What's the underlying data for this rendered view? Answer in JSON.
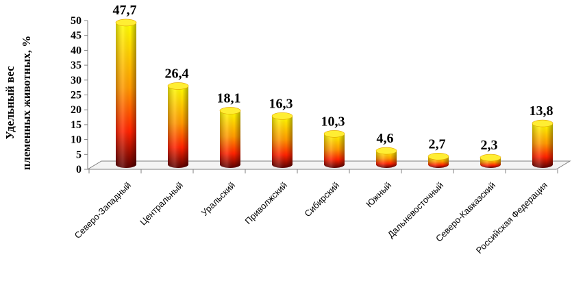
{
  "chart_data": {
    "type": "bar",
    "categories": [
      "Северо-Западный",
      "Центральный",
      "Уральский",
      "Приволжский",
      "Сибирский",
      "Южный",
      "Дальневосточный",
      "Северо-Кавказский",
      "Российская  Федерация"
    ],
    "values": [
      47.7,
      26.4,
      18.1,
      16.3,
      10.3,
      4.6,
      2.7,
      2.3,
      13.8
    ],
    "data_labels": [
      "47,7",
      "26,4",
      "18,1",
      "16,3",
      "10,3",
      "4,6",
      "2,7",
      "2,3",
      "13,8"
    ],
    "y_ticks": [
      "0",
      "5",
      "10",
      "15",
      "20",
      "25",
      "30",
      "35",
      "40",
      "45",
      "50"
    ],
    "ylabel_line1": "Удельный вес",
    "ylabel_line2": "племенных животных, %",
    "ylim": [
      0,
      50
    ],
    "grid": false,
    "legend": "none",
    "bar_style": "3d-cylinder",
    "colors": {
      "bar_top": "#FFFF00",
      "bar_mid": "#FF3300",
      "bar_bottom": "#550000",
      "axis": "#7F7F7F"
    }
  }
}
